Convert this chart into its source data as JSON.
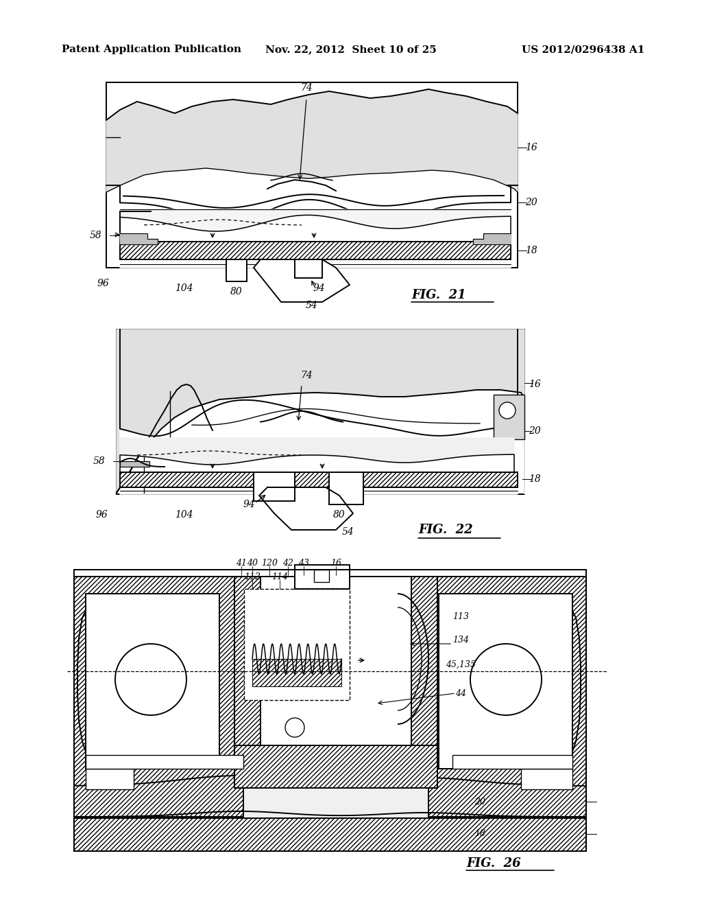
{
  "background_color": "#ffffff",
  "header_left": "Patent Application Publication",
  "header_mid": "Nov. 22, 2012  Sheet 10 of 25",
  "header_right": "US 2012/0296438 A1",
  "header_fontsize": 11,
  "fig21_label": "FIG.  21",
  "fig22_label": "FIG.  22",
  "fig26_label": "FIG.  26",
  "line_color": "#000000",
  "lw": 1.4
}
